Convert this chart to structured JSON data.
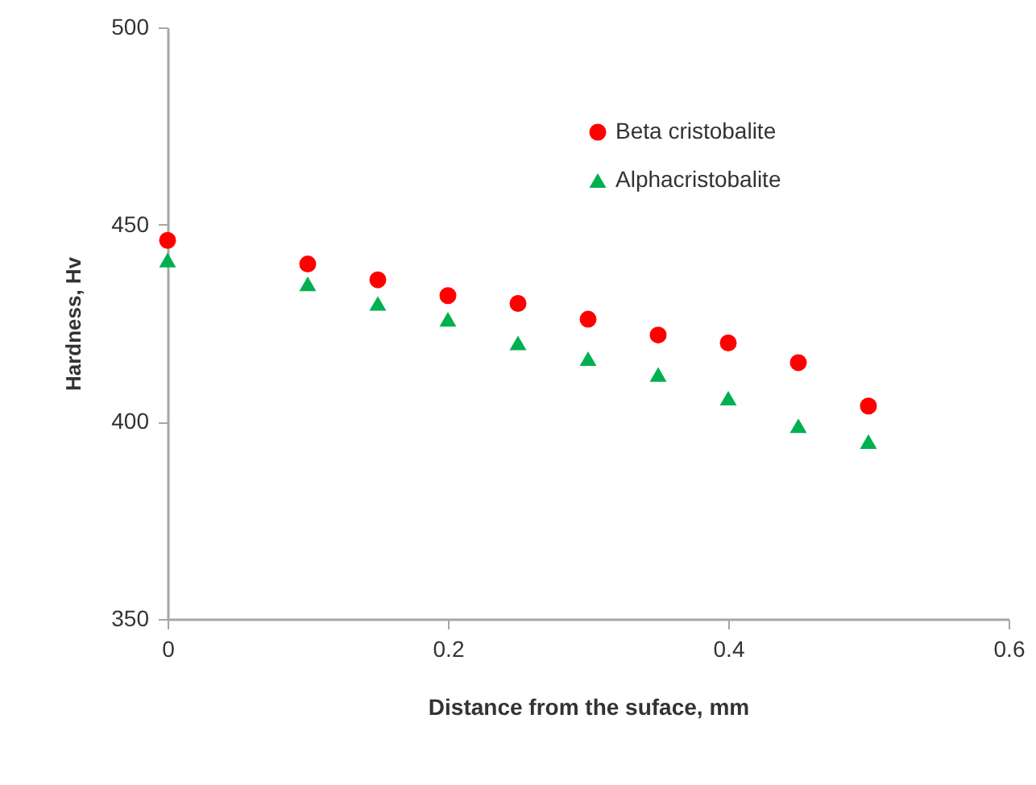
{
  "chart_data": {
    "type": "scatter",
    "xlabel": "Distance from the suface, mm",
    "ylabel": "Hardness, Hv",
    "x": [
      0,
      0.1,
      0.15,
      0.2,
      0.25,
      0.3,
      0.35,
      0.4,
      0.45,
      0.5
    ],
    "series": [
      {
        "name": "Beta cristobalite",
        "color": "#ff0000",
        "marker": "circle",
        "values": [
          446,
          440,
          436,
          432,
          430,
          426,
          422,
          420,
          415,
          404
        ]
      },
      {
        "name": "Alphacristobalite",
        "color": "#00b050",
        "marker": "triangle",
        "values": [
          441,
          435,
          430,
          426,
          420,
          416,
          412,
          406,
          399,
          395
        ]
      }
    ],
    "xlim": [
      0,
      0.6
    ],
    "xticks": [
      0,
      0.2,
      0.4,
      0.6
    ],
    "ylim": [
      350,
      500
    ],
    "yticks": [
      350,
      400,
      450,
      500
    ],
    "legend": "top right",
    "grid": false
  }
}
